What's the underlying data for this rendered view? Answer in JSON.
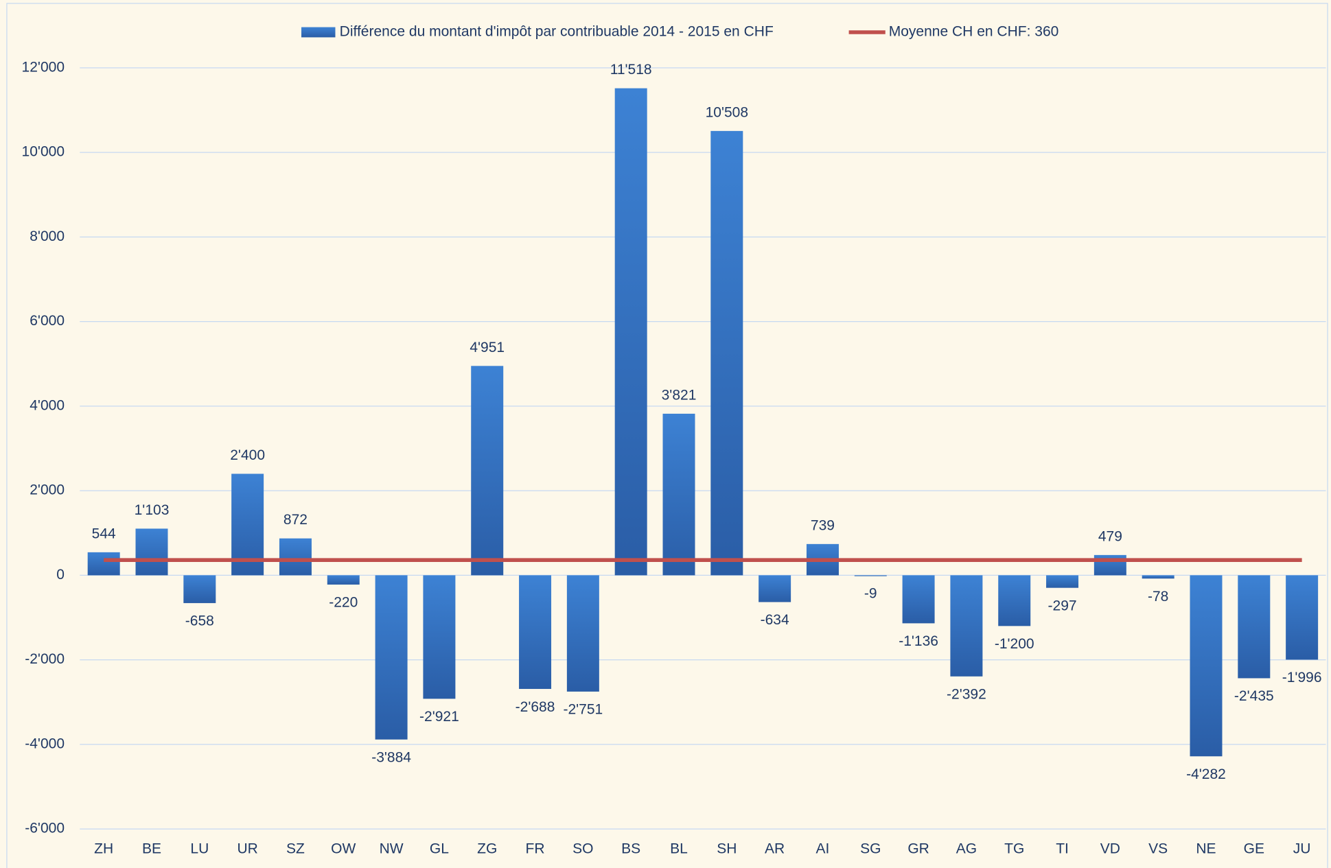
{
  "chart_data": {
    "type": "bar",
    "categories": [
      "ZH",
      "BE",
      "LU",
      "UR",
      "SZ",
      "OW",
      "NW",
      "GL",
      "ZG",
      "FR",
      "SO",
      "BS",
      "BL",
      "SH",
      "AR",
      "AI",
      "SG",
      "GR",
      "AG",
      "TG",
      "TI",
      "VD",
      "VS",
      "NE",
      "GE",
      "JU"
    ],
    "series": [
      {
        "name": "Différence du montant d'impôt par contribuable 2014 - 2015 en CHF",
        "type": "bar",
        "color": "#3a78c8",
        "values": [
          544,
          1103,
          -658,
          2400,
          872,
          -220,
          -3884,
          -2921,
          4951,
          -2688,
          -2751,
          11518,
          3821,
          10508,
          -634,
          739,
          -9,
          -1136,
          -2392,
          -1200,
          -297,
          479,
          -78,
          -4282,
          -2435,
          -1996
        ],
        "value_labels": [
          "544",
          "1'103",
          "-658",
          "2'400",
          "872",
          "-220",
          "-3'884",
          "-2'921",
          "4'951",
          "-2'688",
          "-2'751",
          "11'518",
          "3'821",
          "10'508",
          "-634",
          "739",
          "-9",
          "-1'136",
          "-2'392",
          "-1'200",
          "-297",
          "479",
          "-78",
          "-4'282",
          "-2'435",
          "-1'996"
        ]
      },
      {
        "name": "Moyenne CH en CHF: 360",
        "type": "line",
        "color": "#c0504d",
        "values": [
          360,
          360,
          360,
          360,
          360,
          360,
          360,
          360,
          360,
          360,
          360,
          360,
          360,
          360,
          360,
          360,
          360,
          360,
          360,
          360,
          360,
          360,
          360,
          360,
          360,
          360
        ]
      }
    ],
    "ylim": [
      -6000,
      12000
    ],
    "yticks": [
      {
        "value": -6000,
        "label": "-6'000"
      },
      {
        "value": -4000,
        "label": "-4'000"
      },
      {
        "value": -2000,
        "label": "-2'000"
      },
      0,
      {
        "value": 2000,
        "label": "2'000"
      },
      {
        "value": 4000,
        "label": "4'000"
      },
      {
        "value": 6000,
        "label": "6'000"
      },
      {
        "value": 8000,
        "label": "8'000"
      },
      {
        "value": 10000,
        "label": "10'000"
      },
      {
        "value": 12000,
        "label": "12'000"
      }
    ],
    "grid": true,
    "legend": "top"
  }
}
